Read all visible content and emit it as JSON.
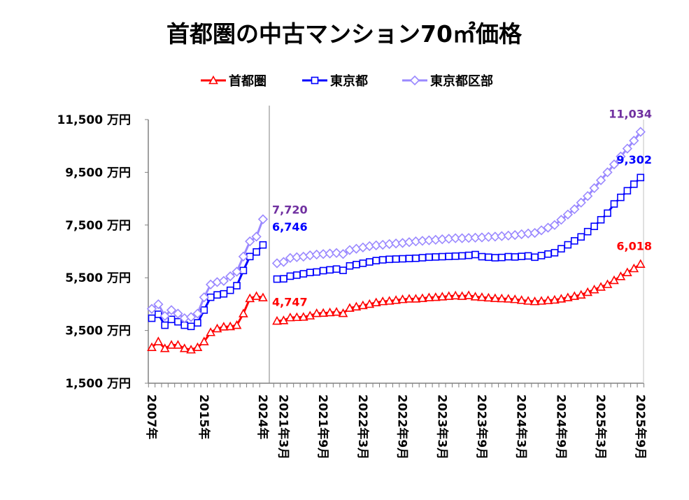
{
  "chart_data": {
    "type": "line",
    "title": "首都圏の中古マンション70㎡価格",
    "ylabel": "",
    "xlabel": "",
    "y_unit": "万円",
    "ylim": [
      1500,
      11500
    ],
    "yticks": [
      1500,
      3500,
      5500,
      7500,
      9500,
      11500
    ],
    "ytick_labels": [
      "1,500 万円",
      "3,500 万円",
      "5,500 万円",
      "7,500 万円",
      "9,500 万円",
      "11,500 万円"
    ],
    "grid": false,
    "legend_position": "top-center",
    "colors": {
      "shutoken": "#FF0000",
      "tokyo": "#0000FF",
      "ku": "#9A88FF",
      "ku_label": "#7030A0"
    },
    "annual": {
      "x": [
        2007,
        2008,
        2009,
        2010,
        2011,
        2012,
        2013,
        2014,
        2015,
        2016,
        2017,
        2018,
        2019,
        2020,
        2021,
        2022,
        2023,
        2024
      ],
      "tick_labels": [
        {
          "index": 0,
          "label": "2007年"
        },
        {
          "index": 8,
          "label": "2015年"
        },
        {
          "index": 17,
          "label": "2024年"
        }
      ],
      "series": [
        {
          "name": "首都圏",
          "key": "shutoken",
          "marker": "triangle",
          "values": [
            2860,
            3080,
            2820,
            2950,
            2950,
            2820,
            2770,
            2860,
            3080,
            3430,
            3570,
            3640,
            3650,
            3700,
            4140,
            4715,
            4800,
            4747
          ]
        },
        {
          "name": "東京都",
          "key": "tokyo",
          "marker": "square",
          "values": [
            3965,
            4115,
            3700,
            3920,
            3830,
            3700,
            3655,
            3790,
            4275,
            4760,
            4850,
            4890,
            5025,
            5200,
            5775,
            6305,
            6480,
            6746
          ]
        },
        {
          "name": "東京都区部",
          "key": "ku",
          "marker": "diamond",
          "values": [
            4320,
            4495,
            4050,
            4275,
            4140,
            3965,
            4010,
            4140,
            4760,
            5245,
            5335,
            5380,
            5555,
            5730,
            6305,
            6880,
            7060,
            7720
          ]
        }
      ],
      "end_labels": {
        "shutoken": "4,747",
        "tokyo": "6,746",
        "ku": "7,720"
      }
    },
    "monthly": {
      "start": "2021年2月",
      "end": "2025年9月",
      "tick_labels": [
        {
          "index": 1,
          "label": "2021年3月"
        },
        {
          "index": 7,
          "label": "2021年9月"
        },
        {
          "index": 13,
          "label": "2022年3月"
        },
        {
          "index": 19,
          "label": "2022年9月"
        },
        {
          "index": 25,
          "label": "2023年3月"
        },
        {
          "index": 31,
          "label": "2023年9月"
        },
        {
          "index": 37,
          "label": "2024年3月"
        },
        {
          "index": 43,
          "label": "2024年9月"
        },
        {
          "index": 49,
          "label": "2025年3月"
        },
        {
          "index": 55,
          "label": "2025年9月"
        }
      ],
      "series": [
        {
          "name": "首都圏",
          "key": "shutoken",
          "marker": "triangle",
          "values": [
            3860,
            3880,
            3990,
            4000,
            4010,
            4060,
            4150,
            4160,
            4180,
            4200,
            4150,
            4350,
            4400,
            4450,
            4500,
            4560,
            4600,
            4620,
            4650,
            4680,
            4700,
            4700,
            4720,
            4750,
            4760,
            4780,
            4800,
            4820,
            4800,
            4830,
            4780,
            4760,
            4740,
            4720,
            4710,
            4700,
            4680,
            4650,
            4620,
            4600,
            4620,
            4640,
            4660,
            4700,
            4750,
            4800,
            4850,
            4950,
            5050,
            5150,
            5250,
            5400,
            5550,
            5700,
            5850,
            6018
          ]
        },
        {
          "name": "東京都",
          "key": "tokyo",
          "marker": "square",
          "values": [
            5450,
            5460,
            5560,
            5600,
            5650,
            5700,
            5720,
            5770,
            5800,
            5830,
            5780,
            5950,
            6000,
            6050,
            6100,
            6150,
            6180,
            6200,
            6210,
            6220,
            6230,
            6240,
            6260,
            6280,
            6290,
            6300,
            6310,
            6320,
            6330,
            6350,
            6380,
            6300,
            6280,
            6260,
            6270,
            6300,
            6290,
            6310,
            6330,
            6280,
            6340,
            6400,
            6450,
            6600,
            6750,
            6900,
            7050,
            7250,
            7450,
            7700,
            7950,
            8300,
            8550,
            8800,
            9050,
            9302
          ]
        },
        {
          "name": "東京都区部",
          "key": "ku",
          "marker": "diamond",
          "values": [
            6050,
            6100,
            6250,
            6280,
            6300,
            6350,
            6380,
            6400,
            6420,
            6440,
            6400,
            6550,
            6600,
            6650,
            6700,
            6730,
            6750,
            6780,
            6800,
            6820,
            6850,
            6880,
            6900,
            6920,
            6940,
            6960,
            6980,
            7000,
            7000,
            7010,
            7020,
            7030,
            7050,
            7060,
            7080,
            7100,
            7120,
            7150,
            7180,
            7200,
            7300,
            7400,
            7500,
            7700,
            7900,
            8100,
            8350,
            8600,
            8900,
            9200,
            9500,
            9800,
            10100,
            10400,
            10700,
            11034
          ]
        }
      ],
      "end_labels": {
        "shutoken": "6,018",
        "tokyo": "9,302",
        "ku": "11,034"
      }
    },
    "legend": [
      {
        "key": "shutoken",
        "label": "首都圏",
        "marker": "triangle"
      },
      {
        "key": "tokyo",
        "label": "東京都",
        "marker": "square"
      },
      {
        "key": "ku",
        "label": "東京都区部",
        "marker": "diamond"
      }
    ]
  }
}
